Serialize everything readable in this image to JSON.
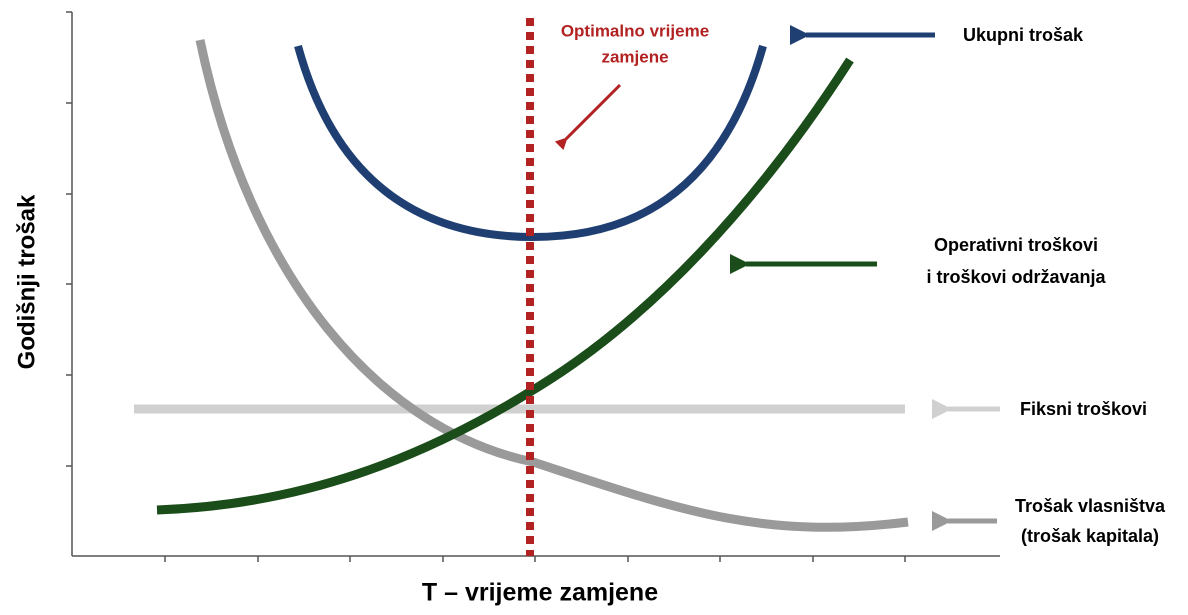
{
  "axes": {
    "x_label": "T – vrijeme zamjene",
    "y_label": "Godišnji trošak"
  },
  "annotation": {
    "lines": [
      "Optimalno vrijeme",
      "zamjene"
    ]
  },
  "curves": [
    {
      "lines": [
        "Ukupni trošak"
      ]
    },
    {
      "lines": [
        "Operativni troškovi",
        "i troškovi održavanja"
      ]
    },
    {
      "lines": [
        "Fiksni troškovi"
      ]
    },
    {
      "lines": [
        "Trošak vlasništva",
        "(trošak kapitala)"
      ]
    }
  ]
}
